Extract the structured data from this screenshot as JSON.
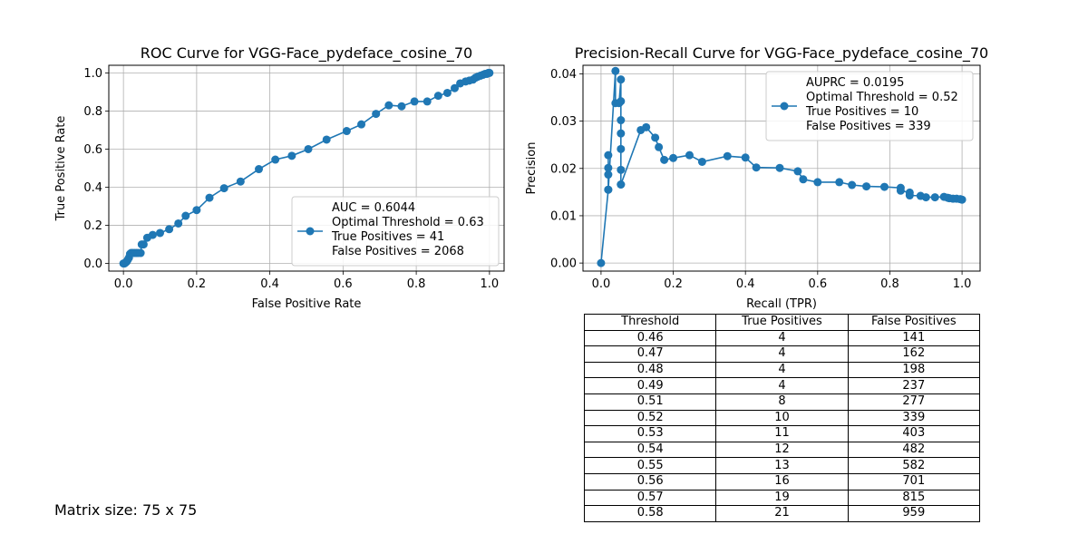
{
  "chart_data": [
    {
      "type": "line",
      "title": "ROC Curve for VGG-Face_pydeface_cosine_70",
      "xlabel": "False Positive Rate",
      "ylabel": "True Positive Rate",
      "xlim": [
        -0.04,
        1.04
      ],
      "ylim": [
        -0.04,
        1.04
      ],
      "xticks": [
        "0.0",
        "0.2",
        "0.4",
        "0.6",
        "0.8",
        "1.0"
      ],
      "yticks": [
        "0.0",
        "0.2",
        "0.4",
        "0.6",
        "0.8",
        "1.0"
      ],
      "grid": true,
      "legend_position": "lower right",
      "color": "#1f77b4",
      "legend": [
        "AUC = 0.6044",
        "Optimal Threshold = 0.63",
        "True Positives = 41",
        "False Positives = 2068"
      ],
      "x": [
        0.0,
        0.003,
        0.006,
        0.009,
        0.012,
        0.015,
        0.018,
        0.021,
        0.025,
        0.03,
        0.035,
        0.04,
        0.047,
        0.05,
        0.055,
        0.065,
        0.08,
        0.1,
        0.125,
        0.15,
        0.17,
        0.2,
        0.235,
        0.275,
        0.32,
        0.37,
        0.415,
        0.46,
        0.505,
        0.555,
        0.61,
        0.65,
        0.69,
        0.725,
        0.76,
        0.795,
        0.83,
        0.86,
        0.885,
        0.905,
        0.92,
        0.935,
        0.945,
        0.955,
        0.962,
        0.968,
        0.975,
        0.982,
        0.988,
        0.993,
        0.997,
        1.0
      ],
      "y": [
        0.0,
        0.0,
        0.005,
        0.01,
        0.02,
        0.03,
        0.05,
        0.055,
        0.055,
        0.055,
        0.055,
        0.055,
        0.055,
        0.1,
        0.1,
        0.135,
        0.15,
        0.16,
        0.18,
        0.21,
        0.25,
        0.28,
        0.345,
        0.395,
        0.43,
        0.495,
        0.545,
        0.565,
        0.6,
        0.65,
        0.695,
        0.73,
        0.785,
        0.83,
        0.825,
        0.85,
        0.85,
        0.88,
        0.895,
        0.92,
        0.945,
        0.955,
        0.96,
        0.965,
        0.975,
        0.98,
        0.985,
        0.99,
        0.995,
        0.995,
        1.0,
        1.0
      ]
    },
    {
      "type": "line",
      "title": "Precision-Recall Curve for VGG-Face_pydeface_cosine_70",
      "xlabel": "Recall (TPR)",
      "ylabel": "Precision",
      "xlim": [
        -0.05,
        1.05
      ],
      "ylim": [
        -0.0017,
        0.0418
      ],
      "xticks": [
        "0.0",
        "0.2",
        "0.4",
        "0.6",
        "0.8",
        "1.0"
      ],
      "yticks": [
        "0.00",
        "0.01",
        "0.02",
        "0.03",
        "0.04"
      ],
      "grid": true,
      "legend_position": "upper right",
      "color": "#1f77b4",
      "legend": [
        "AUPRC = 0.0195",
        "Optimal Threshold = 0.52",
        "True Positives = 10",
        "False Positives = 339"
      ],
      "x": [
        0.0,
        0.02,
        0.02,
        0.02,
        0.02,
        0.02,
        0.04,
        0.04,
        0.05,
        0.055,
        0.055,
        0.055,
        0.055,
        0.055,
        0.055,
        0.055,
        0.055,
        0.11,
        0.125,
        0.15,
        0.16,
        0.175,
        0.2,
        0.245,
        0.28,
        0.35,
        0.4,
        0.43,
        0.495,
        0.545,
        0.56,
        0.6,
        0.66,
        0.695,
        0.735,
        0.785,
        0.83,
        0.83,
        0.855,
        0.855,
        0.885,
        0.9,
        0.925,
        0.95,
        0.96,
        0.965,
        0.975,
        0.985,
        0.995,
        1.0
      ],
      "y": [
        0.0,
        0.0155,
        0.0187,
        0.0201,
        0.0228,
        0.0155,
        0.0406,
        0.0338,
        0.0338,
        0.0388,
        0.0342,
        0.0302,
        0.0274,
        0.0241,
        0.0197,
        0.0166,
        0.0166,
        0.0281,
        0.0287,
        0.0265,
        0.0245,
        0.0218,
        0.0222,
        0.0228,
        0.0214,
        0.0226,
        0.0223,
        0.0202,
        0.0201,
        0.0194,
        0.0177,
        0.0171,
        0.0171,
        0.0165,
        0.0162,
        0.0161,
        0.0159,
        0.0153,
        0.0149,
        0.0143,
        0.0142,
        0.0139,
        0.0139,
        0.014,
        0.0138,
        0.0137,
        0.0136,
        0.0136,
        0.0135,
        0.0134
      ]
    }
  ],
  "table": {
    "headers": [
      "Threshold",
      "True Positives",
      "False Positives"
    ],
    "rows": [
      [
        "0.46",
        "4",
        "141"
      ],
      [
        "0.47",
        "4",
        "162"
      ],
      [
        "0.48",
        "4",
        "198"
      ],
      [
        "0.49",
        "4",
        "237"
      ],
      [
        "0.51",
        "8",
        "277"
      ],
      [
        "0.52",
        "10",
        "339"
      ],
      [
        "0.53",
        "11",
        "403"
      ],
      [
        "0.54",
        "12",
        "482"
      ],
      [
        "0.55",
        "13",
        "582"
      ],
      [
        "0.56",
        "16",
        "701"
      ],
      [
        "0.57",
        "19",
        "815"
      ],
      [
        "0.58",
        "21",
        "959"
      ]
    ]
  },
  "matrix_size_label": "Matrix size: 75 x 75"
}
